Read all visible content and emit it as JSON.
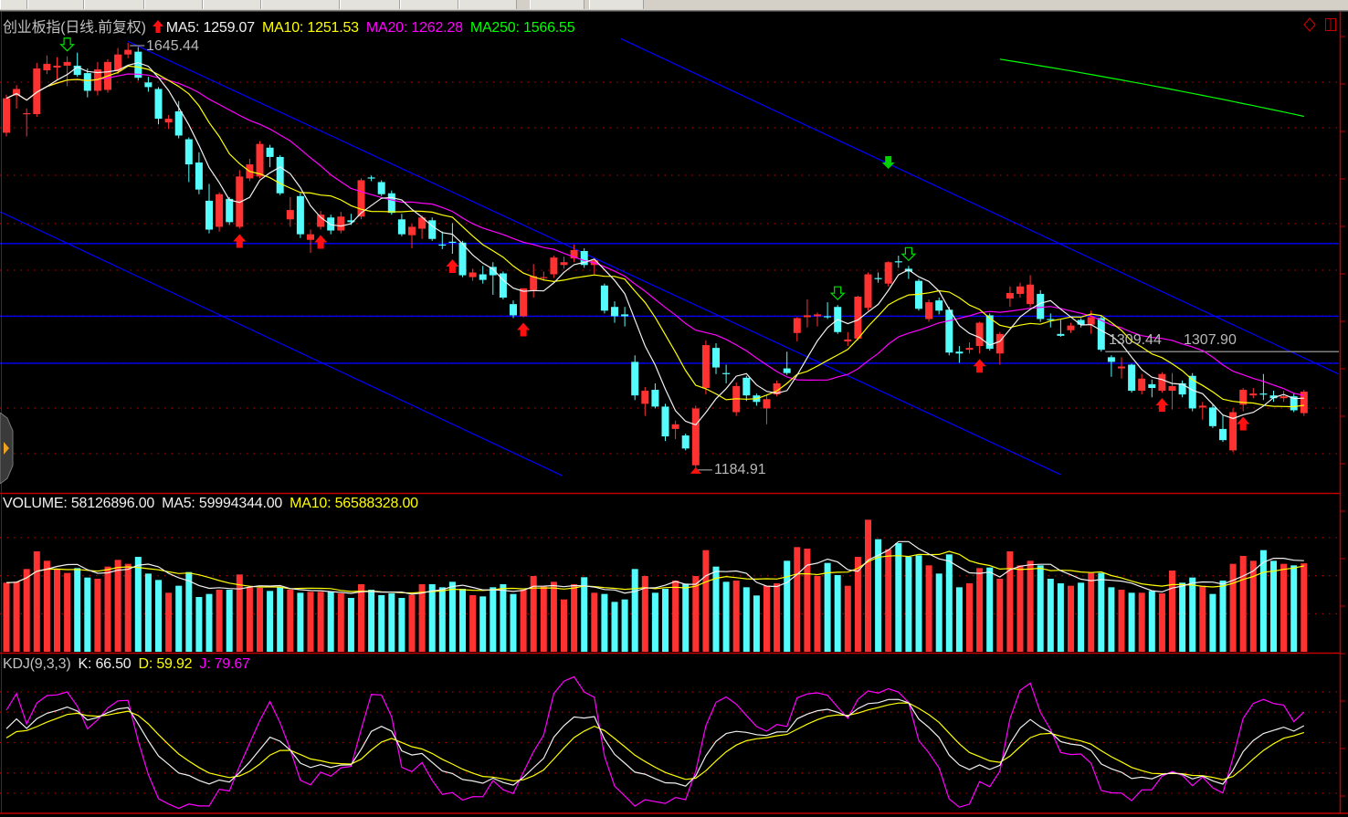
{
  "price_panel": {
    "title": "创业板指(日线.前复权)",
    "signal_icon": "red-up-arrow-icon",
    "ma5_label": "MA5: 1259.07",
    "ma10_label": "MA10: 1251.53",
    "ma20_label": "MA20: 1262.28",
    "ma250_label": "MA250: 1566.55",
    "high_label": "1645.44",
    "low_label": "1184.91",
    "line_label_1": "1309.44",
    "line_label_2": "1307.90"
  },
  "volume_panel": {
    "volume_label": "VOLUME: 58126896.00",
    "ma5_label": "MA5: 59994344.00",
    "ma10_label": "MA10: 56588328.00"
  },
  "kdj_panel": {
    "title_label": "KDJ(9,3,3)",
    "k_label": "K: 66.50",
    "d_label": "D: 59.92",
    "j_label": "J: 79.67"
  },
  "colors": {
    "up": "#ff3232",
    "down": "#54fcfc",
    "ma5": "#f0f0f0",
    "ma10": "#ffff00",
    "ma20": "#ff00ff",
    "ma250": "#00ff00",
    "trendline": "#0000ff",
    "hline": "#0000ff",
    "panel_border": "#c00000",
    "grid": "#a00000"
  },
  "icons": {
    "top_right": [
      "diamond-icon",
      "window-restore-icon"
    ],
    "left_handle": "expand-panel-icon"
  },
  "chart_data": [
    {
      "type": "candlestick",
      "title": "创业板指(日线.前复权)",
      "ma_periods": [
        5,
        10,
        20
      ],
      "high": 1645.44,
      "low": 1184.91,
      "candles_ohlc": [
        [
          1549,
          1590,
          1545,
          1586
        ],
        [
          1589,
          1600,
          1575,
          1596
        ],
        [
          1569,
          1575,
          1545,
          1570
        ],
        [
          1569,
          1624,
          1566,
          1618
        ],
        [
          1616,
          1632,
          1612,
          1623
        ],
        [
          1619,
          1630,
          1606,
          1621
        ],
        [
          1621,
          1631,
          1599,
          1625
        ],
        [
          1621,
          1635,
          1609,
          1611
        ],
        [
          1613,
          1618,
          1587,
          1594
        ],
        [
          1594,
          1625,
          1589,
          1617
        ],
        [
          1595,
          1628,
          1592,
          1625
        ],
        [
          1615,
          1640,
          1612,
          1633
        ],
        [
          1633,
          1645.44,
          1629,
          1638
        ],
        [
          1636,
          1641,
          1605,
          1608
        ],
        [
          1603,
          1609,
          1593,
          1598
        ],
        [
          1596,
          1598,
          1558,
          1564
        ],
        [
          1560,
          1568,
          1553,
          1564
        ],
        [
          1572,
          1583,
          1543,
          1546
        ],
        [
          1542,
          1544,
          1496,
          1515
        ],
        [
          1517,
          1528,
          1483,
          1488
        ],
        [
          1476,
          1494,
          1441,
          1445
        ],
        [
          1448,
          1485,
          1443,
          1483
        ],
        [
          1478,
          1480,
          1450,
          1453
        ],
        [
          1448,
          1509,
          1446,
          1502
        ],
        [
          1500,
          1521,
          1497,
          1515
        ],
        [
          1502,
          1540,
          1500,
          1537
        ],
        [
          1533,
          1536,
          1512,
          1523
        ],
        [
          1523,
          1525,
          1482,
          1484
        ],
        [
          1456,
          1480,
          1448,
          1466
        ],
        [
          1481,
          1484,
          1436,
          1440
        ],
        [
          1434,
          1445,
          1420,
          1440
        ],
        [
          1448,
          1465,
          1445,
          1461
        ],
        [
          1458,
          1461,
          1440,
          1444
        ],
        [
          1444,
          1464,
          1441,
          1459
        ],
        [
          1455,
          1462,
          1450,
          1453
        ],
        [
          1459,
          1500,
          1456,
          1498
        ],
        [
          1501,
          1503,
          1497,
          1500
        ],
        [
          1496,
          1498,
          1481,
          1483
        ],
        [
          1484,
          1487,
          1461,
          1463
        ],
        [
          1456,
          1462,
          1438,
          1440
        ],
        [
          1439,
          1451,
          1425,
          1448
        ],
        [
          1446,
          1460,
          1435,
          1458
        ],
        [
          1455,
          1458,
          1433,
          1435
        ],
        [
          1429,
          1443,
          1424,
          1428
        ],
        [
          1432,
          1452,
          1419,
          1431
        ],
        [
          1431,
          1433,
          1394,
          1396
        ],
        [
          1394,
          1403,
          1390,
          1399
        ],
        [
          1397,
          1406,
          1387,
          1391
        ],
        [
          1405,
          1410,
          1375,
          1396
        ],
        [
          1398,
          1400,
          1370,
          1372
        ],
        [
          1365,
          1369,
          1350,
          1353
        ],
        [
          1352,
          1382,
          1351,
          1382
        ],
        [
          1380,
          1408,
          1372,
          1395
        ],
        [
          1393,
          1400,
          1390,
          1394
        ],
        [
          1397,
          1417,
          1393,
          1415
        ],
        [
          1407,
          1416,
          1403,
          1410
        ],
        [
          1414,
          1429,
          1410,
          1423
        ],
        [
          1422,
          1425,
          1404,
          1407
        ],
        [
          1407,
          1413,
          1397,
          1412
        ],
        [
          1385,
          1387,
          1355,
          1358
        ],
        [
          1362,
          1368,
          1345,
          1352
        ],
        [
          1354,
          1362,
          1341,
          1352
        ],
        [
          1303,
          1310,
          1262,
          1267
        ],
        [
          1258,
          1276,
          1245,
          1272
        ],
        [
          1273,
          1280,
          1253,
          1255
        ],
        [
          1255,
          1258,
          1218,
          1223
        ],
        [
          1231,
          1240,
          1220,
          1236
        ],
        [
          1224,
          1226,
          1208,
          1210
        ],
        [
          1192,
          1256,
          1184.91,
          1253
        ],
        [
          1275,
          1326,
          1268,
          1321
        ],
        [
          1318,
          1323,
          1290,
          1297
        ],
        [
          1291,
          1300,
          1280,
          1290
        ],
        [
          1249,
          1281,
          1245,
          1277
        ],
        [
          1286,
          1288,
          1261,
          1267
        ],
        [
          1267,
          1269,
          1256,
          1260
        ],
        [
          1253,
          1268,
          1236,
          1263
        ],
        [
          1268,
          1283,
          1266,
          1280
        ],
        [
          1296,
          1314,
          1289,
          1291
        ],
        [
          1334,
          1351,
          1325,
          1350
        ],
        [
          1351,
          1370,
          1340,
          1353
        ],
        [
          1352,
          1356,
          1341,
          1354
        ],
        [
          1352,
          1367,
          1349,
          1351
        ],
        [
          1362,
          1364,
          1333,
          1335
        ],
        [
          1325,
          1335,
          1320,
          1327
        ],
        [
          1328,
          1374,
          1326,
          1373
        ],
        [
          1361,
          1399,
          1358,
          1397
        ],
        [
          1393,
          1399,
          1388,
          1392
        ],
        [
          1387,
          1411,
          1384,
          1410
        ],
        [
          1411,
          1417,
          1404,
          1410
        ],
        [
          1403,
          1406,
          1392,
          1400
        ],
        [
          1390,
          1392,
          1358,
          1360
        ],
        [
          1349,
          1370,
          1346,
          1367
        ],
        [
          1369,
          1372,
          1354,
          1358
        ],
        [
          1359,
          1362,
          1310,
          1313
        ],
        [
          1314,
          1320,
          1302,
          1312
        ],
        [
          1316,
          1324,
          1312,
          1318
        ],
        [
          1320,
          1346,
          1312,
          1345
        ],
        [
          1353,
          1355,
          1315,
          1317
        ],
        [
          1312,
          1335,
          1300,
          1333
        ],
        [
          1371,
          1384,
          1362,
          1377
        ],
        [
          1376,
          1388,
          1372,
          1384
        ],
        [
          1365,
          1396,
          1362,
          1386
        ],
        [
          1376,
          1380,
          1346,
          1349
        ],
        [
          1349,
          1355,
          1340,
          1348
        ],
        [
          1333,
          1348,
          1330,
          1331
        ],
        [
          1337,
          1345,
          1334,
          1342
        ],
        [
          1348,
          1350,
          1340,
          1343
        ],
        [
          1343,
          1358,
          1333,
          1351
        ],
        [
          1350,
          1352,
          1314,
          1316
        ],
        [
          1308,
          1310,
          1287,
          1303
        ],
        [
          1296,
          1308,
          1285,
          1298
        ],
        [
          1300,
          1301,
          1270,
          1272
        ],
        [
          1272,
          1290,
          1268,
          1285
        ],
        [
          1279,
          1284,
          1265,
          1275
        ],
        [
          1272,
          1292,
          1270,
          1290
        ],
        [
          1272,
          1291,
          1252,
          1277
        ],
        [
          1280,
          1283,
          1265,
          1268
        ],
        [
          1288,
          1291,
          1250,
          1253
        ],
        [
          1254,
          1260,
          1241,
          1256
        ],
        [
          1254,
          1257,
          1232,
          1234
        ],
        [
          1231,
          1246,
          1217,
          1219
        ],
        [
          1208,
          1253,
          1206,
          1249
        ],
        [
          1257,
          1275,
          1250,
          1273
        ],
        [
          1267,
          1275,
          1264,
          1269
        ],
        [
          1269,
          1290,
          1262,
          1268
        ],
        [
          1267,
          1272,
          1260,
          1264
        ],
        [
          1264,
          1272,
          1260,
          1266
        ],
        [
          1266,
          1269,
          1249,
          1251
        ],
        [
          1248,
          1273,
          1245,
          1271
        ]
      ],
      "ma250_visible": {
        "start_index": 98,
        "end_index": 128,
        "start_value": 1628,
        "end_value": 1566.55
      },
      "trendlines": [
        {
          "from": [
            12,
            1647
          ],
          "to": [
            104,
            1182
          ]
        },
        {
          "from": [
            60.6,
            1650
          ],
          "to": [
            131.4,
            1290
          ]
        },
        {
          "from": [
            -0.6,
            1464
          ],
          "to": [
            54.8,
            1181
          ]
        }
      ],
      "horizontal_lines": [
        1430,
        1352,
        1301.5
      ],
      "gray_line": {
        "value": 1314,
        "start_index": 108.4
      },
      "buy_signals": [
        23,
        31,
        44,
        51,
        96,
        114,
        122
      ],
      "sell_signals": [
        6,
        82,
        89
      ],
      "sell_signal_filled": {
        "index": 87,
        "value": 1517
      }
    },
    {
      "type": "bar",
      "name": "VOLUME",
      "ma_periods": [
        5,
        10
      ],
      "values": [
        45400000,
        46000000,
        54400000,
        66000000,
        59800000,
        54400000,
        51800000,
        55000000,
        48800000,
        48000000,
        56000000,
        60400000,
        57800000,
        62400000,
        51400000,
        47200000,
        38800000,
        43400000,
        52400000,
        36000000,
        38000000,
        40800000,
        40800000,
        50800000,
        42400000,
        42000000,
        40000000,
        42400000,
        40800000,
        38800000,
        39400000,
        39400000,
        39400000,
        38400000,
        35400000,
        44400000,
        40800000,
        37200000,
        38400000,
        35400000,
        37400000,
        44400000,
        44400000,
        42400000,
        46000000,
        41400000,
        37200000,
        36400000,
        42400000,
        44400000,
        38000000,
        40800000,
        49800000,
        42800000,
        46000000,
        34400000,
        44400000,
        49000000,
        38800000,
        38000000,
        32800000,
        34400000,
        54400000,
        49800000,
        38800000,
        41400000,
        46800000,
        44800000,
        49800000,
        66800000,
        56000000,
        46000000,
        46800000,
        42400000,
        37000000,
        43400000,
        45000000,
        59800000,
        68800000,
        67800000,
        49800000,
        58400000,
        50400000,
        43400000,
        62400000,
        86800000,
        74000000,
        67400000,
        71400000,
        62400000,
        63400000,
        56800000,
        51400000,
        64000000,
        42400000,
        45000000,
        55000000,
        55400000,
        48000000,
        66000000,
        56800000,
        59800000,
        56800000,
        48000000,
        45000000,
        43400000,
        45400000,
        51800000,
        51800000,
        42400000,
        40800000,
        38800000,
        38800000,
        40000000,
        38400000,
        53400000,
        45400000,
        48800000,
        43400000,
        38000000,
        46800000,
        57800000,
        63000000,
        59800000,
        66800000,
        59800000,
        57800000,
        56800000,
        58126896
      ]
    },
    {
      "type": "line",
      "name": "KDJ",
      "params": [
        9,
        3,
        3
      ],
      "last": {
        "K": 66.5,
        "D": 59.92,
        "J": 79.67
      },
      "grid_levels": [
        0,
        20,
        50,
        80,
        100
      ]
    }
  ]
}
